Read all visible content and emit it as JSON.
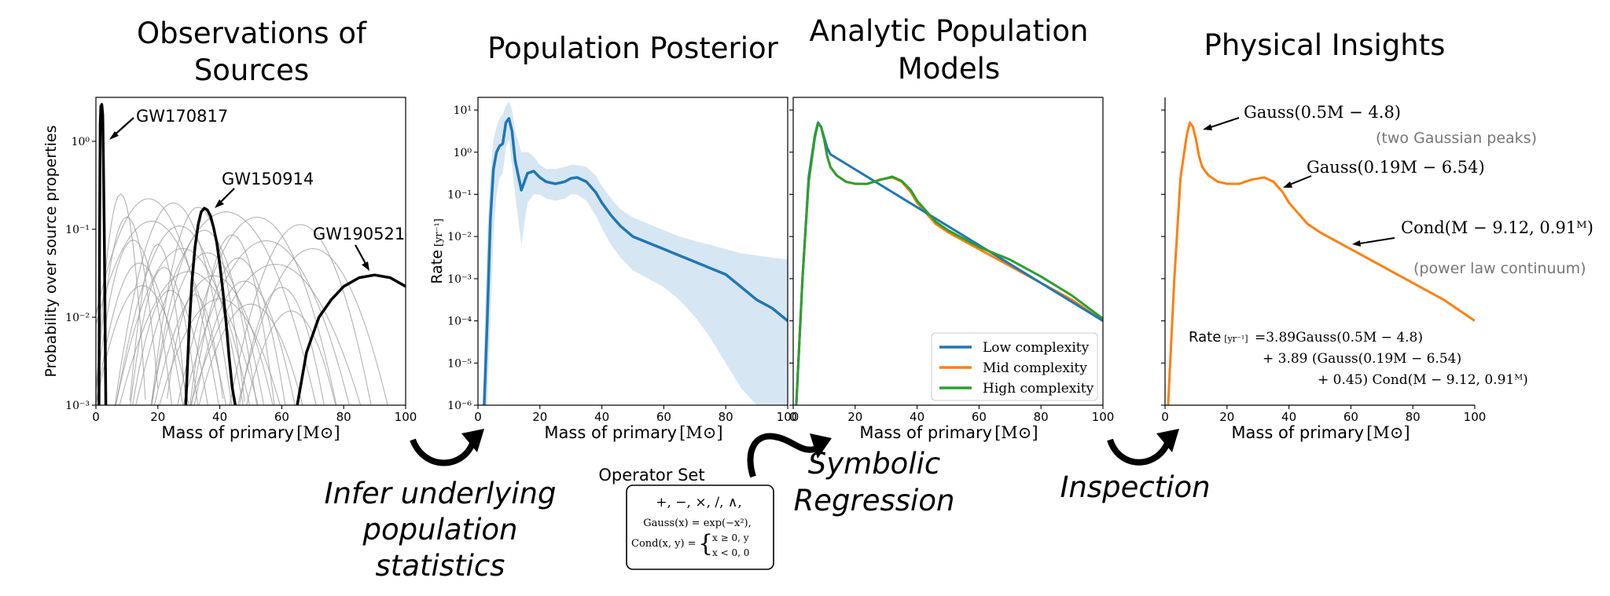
{
  "titles": {
    "observations": [
      "Observations of",
      "Sources"
    ],
    "posterior": "Population Posterior",
    "analytic": [
      "Analytic Population",
      "Models"
    ],
    "insights": "Physical Insights"
  },
  "steps": {
    "infer": [
      "Infer underlying",
      "population",
      "statistics"
    ],
    "symbolic": [
      "Symbolic",
      "Regression"
    ],
    "inspection": "Inspection"
  },
  "operator_set": {
    "title": "Operator Set",
    "ops": "+, −, ×, /, ∧,",
    "gauss": "Gauss(x) = exp(−x²),",
    "cond_lhs": "Cond(x, y) =",
    "cond_case1": "x ≥ 0,   y",
    "cond_case2": "x < 0,   0"
  },
  "chart_data": [
    {
      "type": "line",
      "id": "observations",
      "xlabel": "Mass of primary",
      "xlabel_unit": "[M⊙]",
      "ylabel": "Probability over source properties",
      "xlim": [
        0,
        100
      ],
      "ylim_log10": [
        -3,
        0.5
      ],
      "yscale": "log",
      "x_ticks": [
        "0",
        "20",
        "40",
        "60",
        "80",
        "100"
      ],
      "y_ticks": [
        "10⁻³",
        "10⁻²",
        "10⁻¹",
        "10⁰"
      ],
      "annotations": [
        "GW170817",
        "GW150914",
        "GW190521"
      ],
      "series": [
        {
          "label": "GW170817",
          "x": [
            1.0,
            1.2,
            1.4,
            1.6,
            1.9,
            2.2,
            2.4,
            2.7,
            3.0,
            3.2
          ],
          "log10_y": [
            -3.0,
            -1.0,
            0.2,
            0.4,
            0.42,
            0.3,
            -0.2,
            -1.0,
            -2.2,
            -3.0
          ]
        },
        {
          "label": "GW150914",
          "x": [
            29,
            30,
            31,
            32,
            33,
            34,
            35,
            36,
            37,
            38,
            39,
            40,
            41,
            42,
            43,
            44,
            45
          ],
          "log10_y": [
            -3.0,
            -2.2,
            -1.6,
            -1.2,
            -0.95,
            -0.8,
            -0.76,
            -0.78,
            -0.85,
            -0.98,
            -1.15,
            -1.4,
            -1.7,
            -2.05,
            -2.45,
            -2.8,
            -3.0
          ]
        },
        {
          "label": "GW190521",
          "x": [
            65,
            68,
            72,
            76,
            80,
            85,
            90,
            95,
            100
          ],
          "log10_y": [
            -3.0,
            -2.4,
            -2.0,
            -1.8,
            -1.65,
            -1.55,
            -1.52,
            -1.55,
            -1.65
          ]
        }
      ],
      "background_curves": "many thin grey curves (other events)"
    },
    {
      "type": "area",
      "id": "posterior",
      "xlabel": "Mass of primary",
      "xlabel_unit": "[M⊙]",
      "ylabel": "Rate",
      "ylabel_unit": "[yr⁻¹]",
      "xlim": [
        0,
        100
      ],
      "ylim_log10": [
        -6,
        1.3
      ],
      "yscale": "log",
      "x_ticks": [
        "0",
        "20",
        "40",
        "60",
        "80",
        "100"
      ],
      "y_ticks": [
        "10⁻⁶",
        "10⁻⁵",
        "10⁻⁴",
        "10⁻³",
        "10⁻²",
        "10⁻¹",
        "10⁰",
        "10¹"
      ],
      "median": {
        "x": [
          2,
          3,
          4,
          5,
          6,
          7,
          8,
          9,
          10,
          11,
          12,
          14,
          16,
          18,
          20,
          22,
          25,
          28,
          30,
          32,
          35,
          38,
          40,
          43,
          46,
          50,
          55,
          60,
          65,
          70,
          75,
          80,
          85,
          90,
          95,
          100
        ],
        "log10_y": [
          -6.0,
          -4.0,
          -1.6,
          -0.4,
          0.0,
          0.15,
          0.2,
          0.7,
          0.8,
          0.5,
          -0.2,
          -0.9,
          -0.5,
          -0.45,
          -0.6,
          -0.7,
          -0.75,
          -0.7,
          -0.62,
          -0.6,
          -0.7,
          -0.95,
          -1.2,
          -1.5,
          -1.75,
          -2.0,
          -2.15,
          -2.3,
          -2.45,
          -2.6,
          -2.75,
          -2.9,
          -3.2,
          -3.5,
          -3.7,
          -4.0
        ]
      },
      "band_upper_log10": [
        -4.5,
        -2.0,
        -0.5,
        0.3,
        0.6,
        0.8,
        0.9,
        1.1,
        1.2,
        1.0,
        0.5,
        0.0,
        0.0,
        -0.1,
        -0.3,
        -0.4,
        -0.4,
        -0.35,
        -0.3,
        -0.3,
        -0.35,
        -0.55,
        -0.8,
        -1.1,
        -1.35,
        -1.55,
        -1.7,
        -1.85,
        -2.0,
        -2.1,
        -2.2,
        -2.3,
        -2.4,
        -2.45,
        -2.5,
        -2.55
      ],
      "band_lower_log10": [
        -6.0,
        -6.0,
        -4.0,
        -2.0,
        -1.0,
        -0.6,
        -0.5,
        0.1,
        0.3,
        -0.3,
        -1.0,
        -2.2,
        -1.2,
        -1.0,
        -1.0,
        -1.1,
        -1.15,
        -1.1,
        -1.0,
        -1.0,
        -1.15,
        -1.5,
        -1.8,
        -2.2,
        -2.5,
        -2.8,
        -3.0,
        -3.2,
        -3.5,
        -3.9,
        -4.4,
        -5.0,
        -5.6,
        -6.0,
        -6.0,
        -6.0
      ]
    },
    {
      "type": "line",
      "id": "analytic",
      "xlabel": "Mass of primary",
      "xlabel_unit": "[M⊙]",
      "xlim": [
        0,
        100
      ],
      "ylim_log10": [
        -6,
        1.3
      ],
      "yscale": "log",
      "x_ticks": [
        "0",
        "20",
        "40",
        "60",
        "80",
        "100"
      ],
      "legend_position": "bottom-right",
      "series": [
        {
          "name": "Low complexity",
          "color": "#1f77b4",
          "x": [
            1,
            3,
            5,
            7,
            8,
            9,
            10,
            11,
            12,
            100
          ],
          "log10_y": [
            -6.0,
            -3.0,
            -0.6,
            0.4,
            0.7,
            0.6,
            0.35,
            0.1,
            -0.05,
            -4.0
          ]
        },
        {
          "name": "Mid complexity",
          "color": "#ff7f0e",
          "x": [
            1,
            3,
            5,
            7,
            8,
            9,
            10,
            11,
            12,
            14,
            17,
            20,
            24,
            28,
            32,
            35,
            38,
            40,
            43,
            46,
            50,
            55,
            60,
            70,
            80,
            90,
            100
          ],
          "log10_y": [
            -6.0,
            -3.0,
            -0.6,
            0.4,
            0.7,
            0.6,
            0.3,
            -0.1,
            -0.35,
            -0.55,
            -0.7,
            -0.75,
            -0.75,
            -0.65,
            -0.6,
            -0.7,
            -0.95,
            -1.2,
            -1.45,
            -1.7,
            -1.9,
            -2.1,
            -2.3,
            -2.7,
            -3.1,
            -3.5,
            -4.0
          ]
        },
        {
          "name": "High complexity",
          "color": "#2ca02c",
          "x": [
            1,
            3,
            5,
            7,
            8,
            9,
            10,
            11,
            12,
            14,
            17,
            20,
            24,
            28,
            32,
            35,
            38,
            40,
            43,
            46,
            50,
            55,
            60,
            70,
            80,
            90,
            100
          ],
          "log10_y": [
            -6.0,
            -3.0,
            -0.7,
            0.35,
            0.68,
            0.6,
            0.3,
            -0.1,
            -0.35,
            -0.55,
            -0.7,
            -0.75,
            -0.75,
            -0.66,
            -0.58,
            -0.68,
            -0.9,
            -1.15,
            -1.4,
            -1.65,
            -1.85,
            -2.05,
            -2.25,
            -2.55,
            -2.95,
            -3.4,
            -3.95
          ]
        }
      ]
    },
    {
      "type": "line",
      "id": "insights",
      "xlabel": "Mass of primary",
      "xlabel_unit": "[M⊙]",
      "xlim": [
        0,
        100
      ],
      "ylim_log10": [
        -6,
        1.3
      ],
      "yscale": "log",
      "x_ticks": [
        "0",
        "20",
        "40",
        "60",
        "80",
        "100"
      ],
      "series": [
        {
          "color": "#ff7f0e",
          "x": [
            1,
            3,
            5,
            7,
            8,
            9,
            10,
            11,
            12,
            14,
            17,
            20,
            24,
            28,
            32,
            35,
            38,
            40,
            43,
            46,
            50,
            55,
            60,
            70,
            80,
            90,
            100
          ],
          "log10_y": [
            -6.0,
            -3.0,
            -0.6,
            0.4,
            0.7,
            0.6,
            0.3,
            -0.1,
            -0.35,
            -0.55,
            -0.7,
            -0.75,
            -0.75,
            -0.65,
            -0.6,
            -0.7,
            -0.95,
            -1.2,
            -1.45,
            -1.7,
            -1.9,
            -2.1,
            -2.3,
            -2.7,
            -3.1,
            -3.5,
            -4.0
          ]
        }
      ],
      "annotations": {
        "peak1": "Gauss(0.5M − 4.8)",
        "peak1_note": "(two Gaussian peaks)",
        "peak2": "Gauss(0.19M − 6.54)",
        "cont": "Cond(M − 9.12, 0.91ᴹ)",
        "cont_note": "(power law continuum)"
      },
      "equation": {
        "lhs": "Rate",
        "lhs_unit": "[yr⁻¹]",
        "line1": "=3.89Gauss(0.5M − 4.8)",
        "line2": "+ 3.89 (Gauss(0.19M − 6.54)",
        "line3": "+ 0.45) Cond(M − 9.12, 0.91ᴹ)"
      }
    }
  ]
}
